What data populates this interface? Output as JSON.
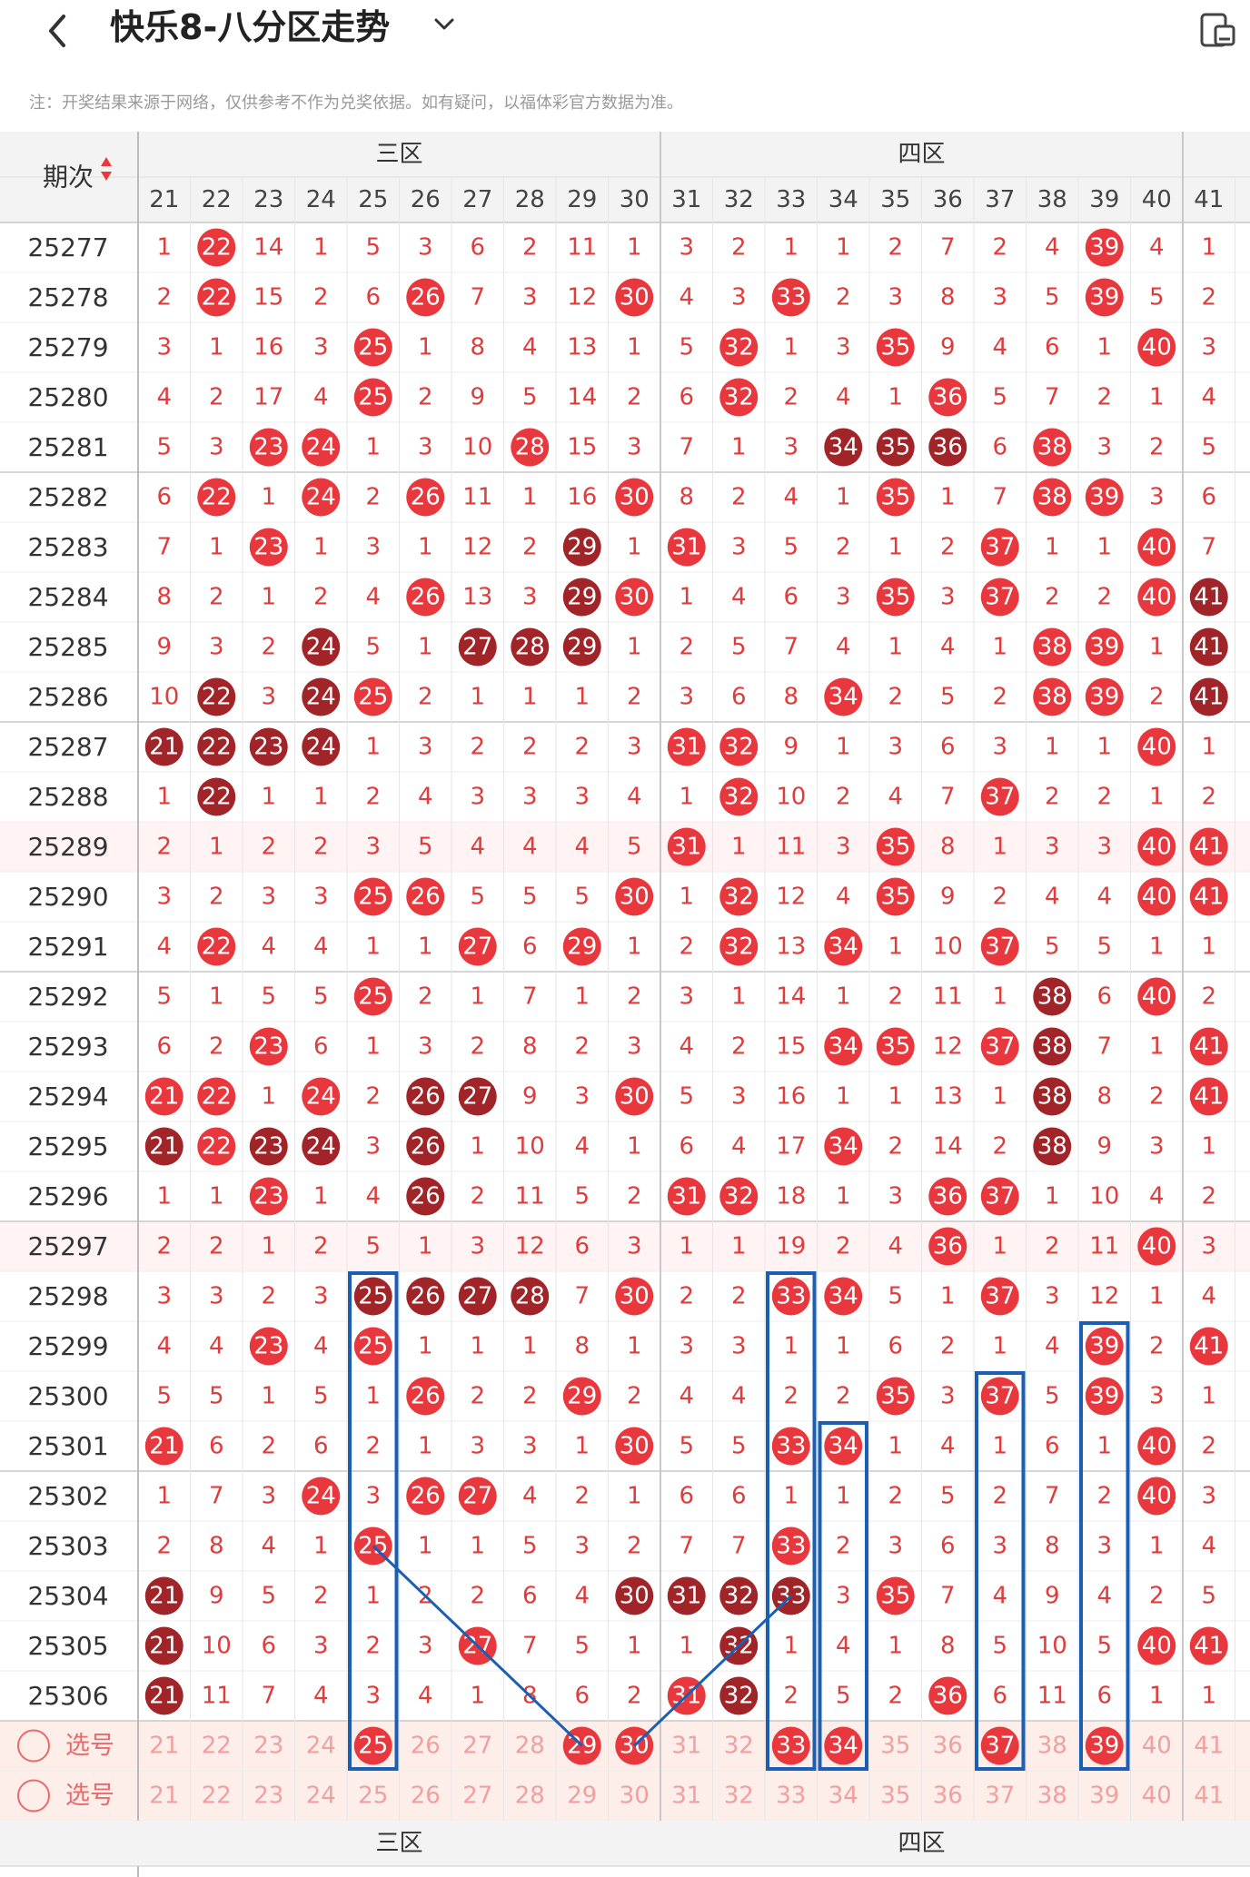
{
  "header": {
    "title": "快乐8-八分区走势",
    "notice": "注：开奖结果来源于网络，仅供参考不作为兑奖依据。如有疑问，以福体彩官方数据为准。"
  },
  "table": {
    "period_header": "期次",
    "zones": [
      {
        "name": "三区",
        "start": 21,
        "end": 30
      },
      {
        "name": "四区",
        "start": 31,
        "end": 40
      }
    ],
    "columns": [
      "21",
      "22",
      "23",
      "24",
      "25",
      "26",
      "27",
      "28",
      "29",
      "30",
      "31",
      "32",
      "33",
      "34",
      "35",
      "36",
      "37",
      "38",
      "39",
      "40",
      "41"
    ],
    "rows": [
      {
        "period": "25277",
        "cells": [
          1,
          22,
          14,
          1,
          5,
          3,
          6,
          2,
          11,
          1,
          3,
          2,
          1,
          1,
          2,
          7,
          2,
          4,
          39,
          4,
          1
        ]
      },
      {
        "period": "25278",
        "cells": [
          2,
          22,
          15,
          2,
          6,
          26,
          7,
          3,
          12,
          30,
          4,
          3,
          33,
          2,
          3,
          8,
          3,
          5,
          39,
          5,
          2
        ]
      },
      {
        "period": "25279",
        "cells": [
          3,
          1,
          16,
          3,
          25,
          1,
          8,
          4,
          13,
          1,
          5,
          32,
          1,
          3,
          35,
          9,
          4,
          6,
          1,
          40,
          3
        ]
      },
      {
        "period": "25280",
        "cells": [
          4,
          2,
          17,
          4,
          25,
          2,
          9,
          5,
          14,
          2,
          6,
          32,
          2,
          4,
          1,
          36,
          5,
          7,
          2,
          1,
          4
        ]
      },
      {
        "period": "25281",
        "cells": [
          5,
          3,
          23,
          24,
          1,
          3,
          10,
          28,
          15,
          3,
          7,
          1,
          3,
          34,
          35,
          36,
          6,
          38,
          3,
          2,
          5
        ]
      },
      {
        "period": "25282",
        "cells": [
          6,
          22,
          1,
          24,
          2,
          26,
          11,
          1,
          16,
          30,
          8,
          2,
          4,
          1,
          35,
          1,
          7,
          38,
          39,
          3,
          6
        ]
      },
      {
        "period": "25283",
        "cells": [
          7,
          1,
          23,
          1,
          3,
          1,
          12,
          2,
          29,
          1,
          31,
          3,
          5,
          2,
          1,
          2,
          37,
          1,
          1,
          40,
          7
        ]
      },
      {
        "period": "25284",
        "cells": [
          8,
          2,
          1,
          2,
          4,
          26,
          13,
          3,
          29,
          30,
          1,
          4,
          6,
          3,
          35,
          3,
          37,
          2,
          2,
          40,
          41
        ]
      },
      {
        "period": "25285",
        "cells": [
          9,
          3,
          2,
          24,
          5,
          1,
          27,
          28,
          29,
          1,
          2,
          5,
          7,
          4,
          1,
          4,
          1,
          38,
          39,
          1,
          41
        ]
      },
      {
        "period": "25286",
        "cells": [
          10,
          22,
          3,
          24,
          25,
          2,
          1,
          1,
          1,
          2,
          3,
          6,
          8,
          34,
          2,
          5,
          2,
          38,
          39,
          2,
          41
        ]
      },
      {
        "period": "25287",
        "cells": [
          21,
          22,
          23,
          24,
          1,
          3,
          2,
          2,
          2,
          3,
          31,
          32,
          9,
          1,
          3,
          6,
          3,
          1,
          1,
          40,
          1
        ]
      },
      {
        "period": "25288",
        "cells": [
          1,
          22,
          1,
          1,
          2,
          4,
          3,
          3,
          3,
          4,
          1,
          32,
          10,
          2,
          4,
          7,
          37,
          2,
          2,
          1,
          2
        ]
      },
      {
        "period": "25289",
        "cells": [
          2,
          1,
          2,
          2,
          3,
          5,
          4,
          4,
          4,
          5,
          31,
          1,
          11,
          3,
          35,
          8,
          1,
          3,
          3,
          40,
          41
        ]
      },
      {
        "period": "25290",
        "cells": [
          3,
          2,
          3,
          3,
          25,
          26,
          5,
          5,
          5,
          30,
          1,
          32,
          12,
          4,
          35,
          9,
          2,
          4,
          4,
          40,
          41
        ]
      },
      {
        "period": "25291",
        "cells": [
          4,
          22,
          4,
          4,
          1,
          1,
          27,
          6,
          29,
          1,
          2,
          32,
          13,
          34,
          1,
          10,
          37,
          5,
          5,
          1,
          1
        ]
      },
      {
        "period": "25292",
        "cells": [
          5,
          1,
          5,
          5,
          25,
          2,
          1,
          7,
          1,
          2,
          3,
          1,
          14,
          1,
          2,
          11,
          1,
          38,
          6,
          40,
          2
        ]
      },
      {
        "period": "25293",
        "cells": [
          6,
          2,
          23,
          6,
          1,
          3,
          2,
          8,
          2,
          3,
          4,
          2,
          15,
          34,
          35,
          12,
          37,
          38,
          7,
          1,
          41
        ]
      },
      {
        "period": "25294",
        "cells": [
          21,
          22,
          1,
          24,
          2,
          26,
          27,
          9,
          3,
          30,
          5,
          3,
          16,
          1,
          1,
          13,
          1,
          38,
          8,
          2,
          41
        ]
      },
      {
        "period": "25295",
        "cells": [
          21,
          22,
          23,
          24,
          3,
          26,
          1,
          10,
          4,
          1,
          6,
          4,
          17,
          34,
          2,
          14,
          2,
          38,
          9,
          3,
          1
        ]
      },
      {
        "period": "25296",
        "cells": [
          1,
          1,
          23,
          1,
          4,
          26,
          2,
          11,
          5,
          2,
          31,
          32,
          18,
          1,
          3,
          36,
          37,
          1,
          10,
          4,
          2
        ]
      },
      {
        "period": "25297",
        "cells": [
          2,
          2,
          1,
          2,
          5,
          1,
          3,
          12,
          6,
          3,
          1,
          1,
          19,
          2,
          4,
          36,
          1,
          2,
          11,
          40,
          3
        ]
      },
      {
        "period": "25298",
        "cells": [
          3,
          3,
          2,
          3,
          25,
          26,
          27,
          28,
          7,
          30,
          2,
          2,
          33,
          34,
          5,
          1,
          37,
          3,
          12,
          1,
          4
        ]
      },
      {
        "period": "25299",
        "cells": [
          4,
          4,
          23,
          4,
          25,
          1,
          1,
          1,
          8,
          1,
          3,
          3,
          1,
          1,
          6,
          2,
          1,
          4,
          39,
          2,
          41
        ]
      },
      {
        "period": "25300",
        "cells": [
          5,
          5,
          1,
          5,
          1,
          26,
          2,
          2,
          29,
          2,
          4,
          4,
          2,
          2,
          35,
          3,
          37,
          5,
          39,
          3,
          1
        ]
      },
      {
        "period": "25301",
        "cells": [
          21,
          6,
          2,
          6,
          2,
          1,
          3,
          3,
          1,
          30,
          5,
          5,
          33,
          34,
          1,
          4,
          1,
          6,
          1,
          40,
          2
        ]
      },
      {
        "period": "25302",
        "cells": [
          1,
          7,
          3,
          24,
          3,
          26,
          27,
          4,
          2,
          1,
          6,
          6,
          1,
          1,
          2,
          5,
          2,
          7,
          2,
          40,
          3
        ]
      },
      {
        "period": "25303",
        "cells": [
          2,
          8,
          4,
          1,
          25,
          1,
          1,
          5,
          3,
          2,
          7,
          7,
          33,
          2,
          3,
          6,
          3,
          8,
          3,
          1,
          4
        ]
      },
      {
        "period": "25304",
        "cells": [
          21,
          9,
          5,
          2,
          1,
          2,
          2,
          6,
          4,
          30,
          31,
          32,
          33,
          3,
          35,
          7,
          4,
          9,
          4,
          2,
          5
        ]
      },
      {
        "period": "25305",
        "cells": [
          21,
          10,
          6,
          3,
          2,
          3,
          27,
          7,
          5,
          1,
          1,
          32,
          1,
          4,
          1,
          8,
          5,
          10,
          5,
          40,
          41
        ]
      },
      {
        "period": "25306",
        "cells": [
          21,
          11,
          7,
          4,
          3,
          4,
          1,
          8,
          6,
          2,
          31,
          32,
          2,
          5,
          2,
          36,
          6,
          11,
          6,
          1,
          1
        ]
      }
    ],
    "dark_cells": [
      "25281:34",
      "25281:35",
      "25281:36",
      "25283:29",
      "25284:29",
      "25285:29",
      "25285:24",
      "25286:24",
      "25287:24",
      "25285:27",
      "25285:28",
      "25286:22",
      "25287:22",
      "25288:22",
      "25287:21",
      "25287:23",
      "25284:41",
      "25285:41",
      "25286:41",
      "25292:38",
      "25293:38",
      "25294:38",
      "25295:38",
      "25294:26",
      "25295:26",
      "25296:26",
      "25294:27",
      "25295:21",
      "25295:23",
      "25295:24",
      "25298:25",
      "25298:26",
      "25298:27",
      "25298:28",
      "25304:21",
      "25305:21",
      "25306:21",
      "25304:30",
      "25304:31",
      "25304:32",
      "25304:33",
      "25305:32",
      "25306:32"
    ],
    "select_rows": [
      {
        "label": "选号",
        "selected": [
          25,
          29,
          30,
          33,
          34,
          37,
          39
        ]
      },
      {
        "label": "选号",
        "selected": []
      }
    ],
    "footer_zones": [
      "三区",
      "四区"
    ]
  },
  "colors": {
    "red": "#e8383d",
    "dark_red": "#a02428",
    "number_text": "#e03c3c",
    "select_row_bg": "#fdeee9",
    "highlight_box": "#1a5fb4",
    "header_bg": "#f3f3f3"
  }
}
